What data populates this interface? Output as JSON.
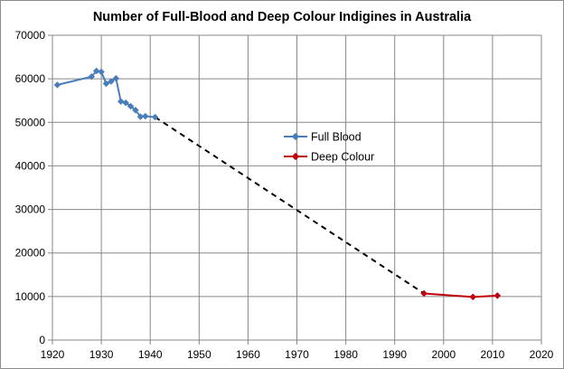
{
  "chart_data": {
    "type": "line",
    "title": "Number of Full-Blood and Deep Colour Indigines in Australia",
    "xlabel": "",
    "ylabel": "",
    "xlim": [
      1920,
      2020
    ],
    "ylim": [
      0,
      70000
    ],
    "x_ticks": [
      1920,
      1930,
      1940,
      1950,
      1960,
      1970,
      1980,
      1990,
      2000,
      2010,
      2020
    ],
    "y_ticks": [
      0,
      10000,
      20000,
      30000,
      40000,
      50000,
      60000,
      70000
    ],
    "grid": true,
    "legend_position": "center",
    "series": [
      {
        "name": "Full Blood",
        "color": "#4a7ebb",
        "marker": "diamond",
        "x": [
          1921,
          1928,
          1929,
          1930,
          1931,
          1932,
          1933,
          1934,
          1935,
          1936,
          1937,
          1938,
          1939,
          1941
        ],
        "y": [
          58600,
          60500,
          61800,
          61600,
          58900,
          59400,
          60100,
          54800,
          54500,
          53700,
          52800,
          51300,
          51400,
          51200
        ]
      },
      {
        "name": "Deep Colour",
        "color": "#c0000e",
        "marker": "diamond",
        "x": [
          1996,
          2006,
          2011
        ],
        "y": [
          10700,
          9900,
          10200
        ]
      }
    ],
    "connector": {
      "style": "dashed",
      "color": "#000000",
      "x": [
        1941,
        1996
      ],
      "y": [
        51200,
        10700
      ]
    }
  }
}
